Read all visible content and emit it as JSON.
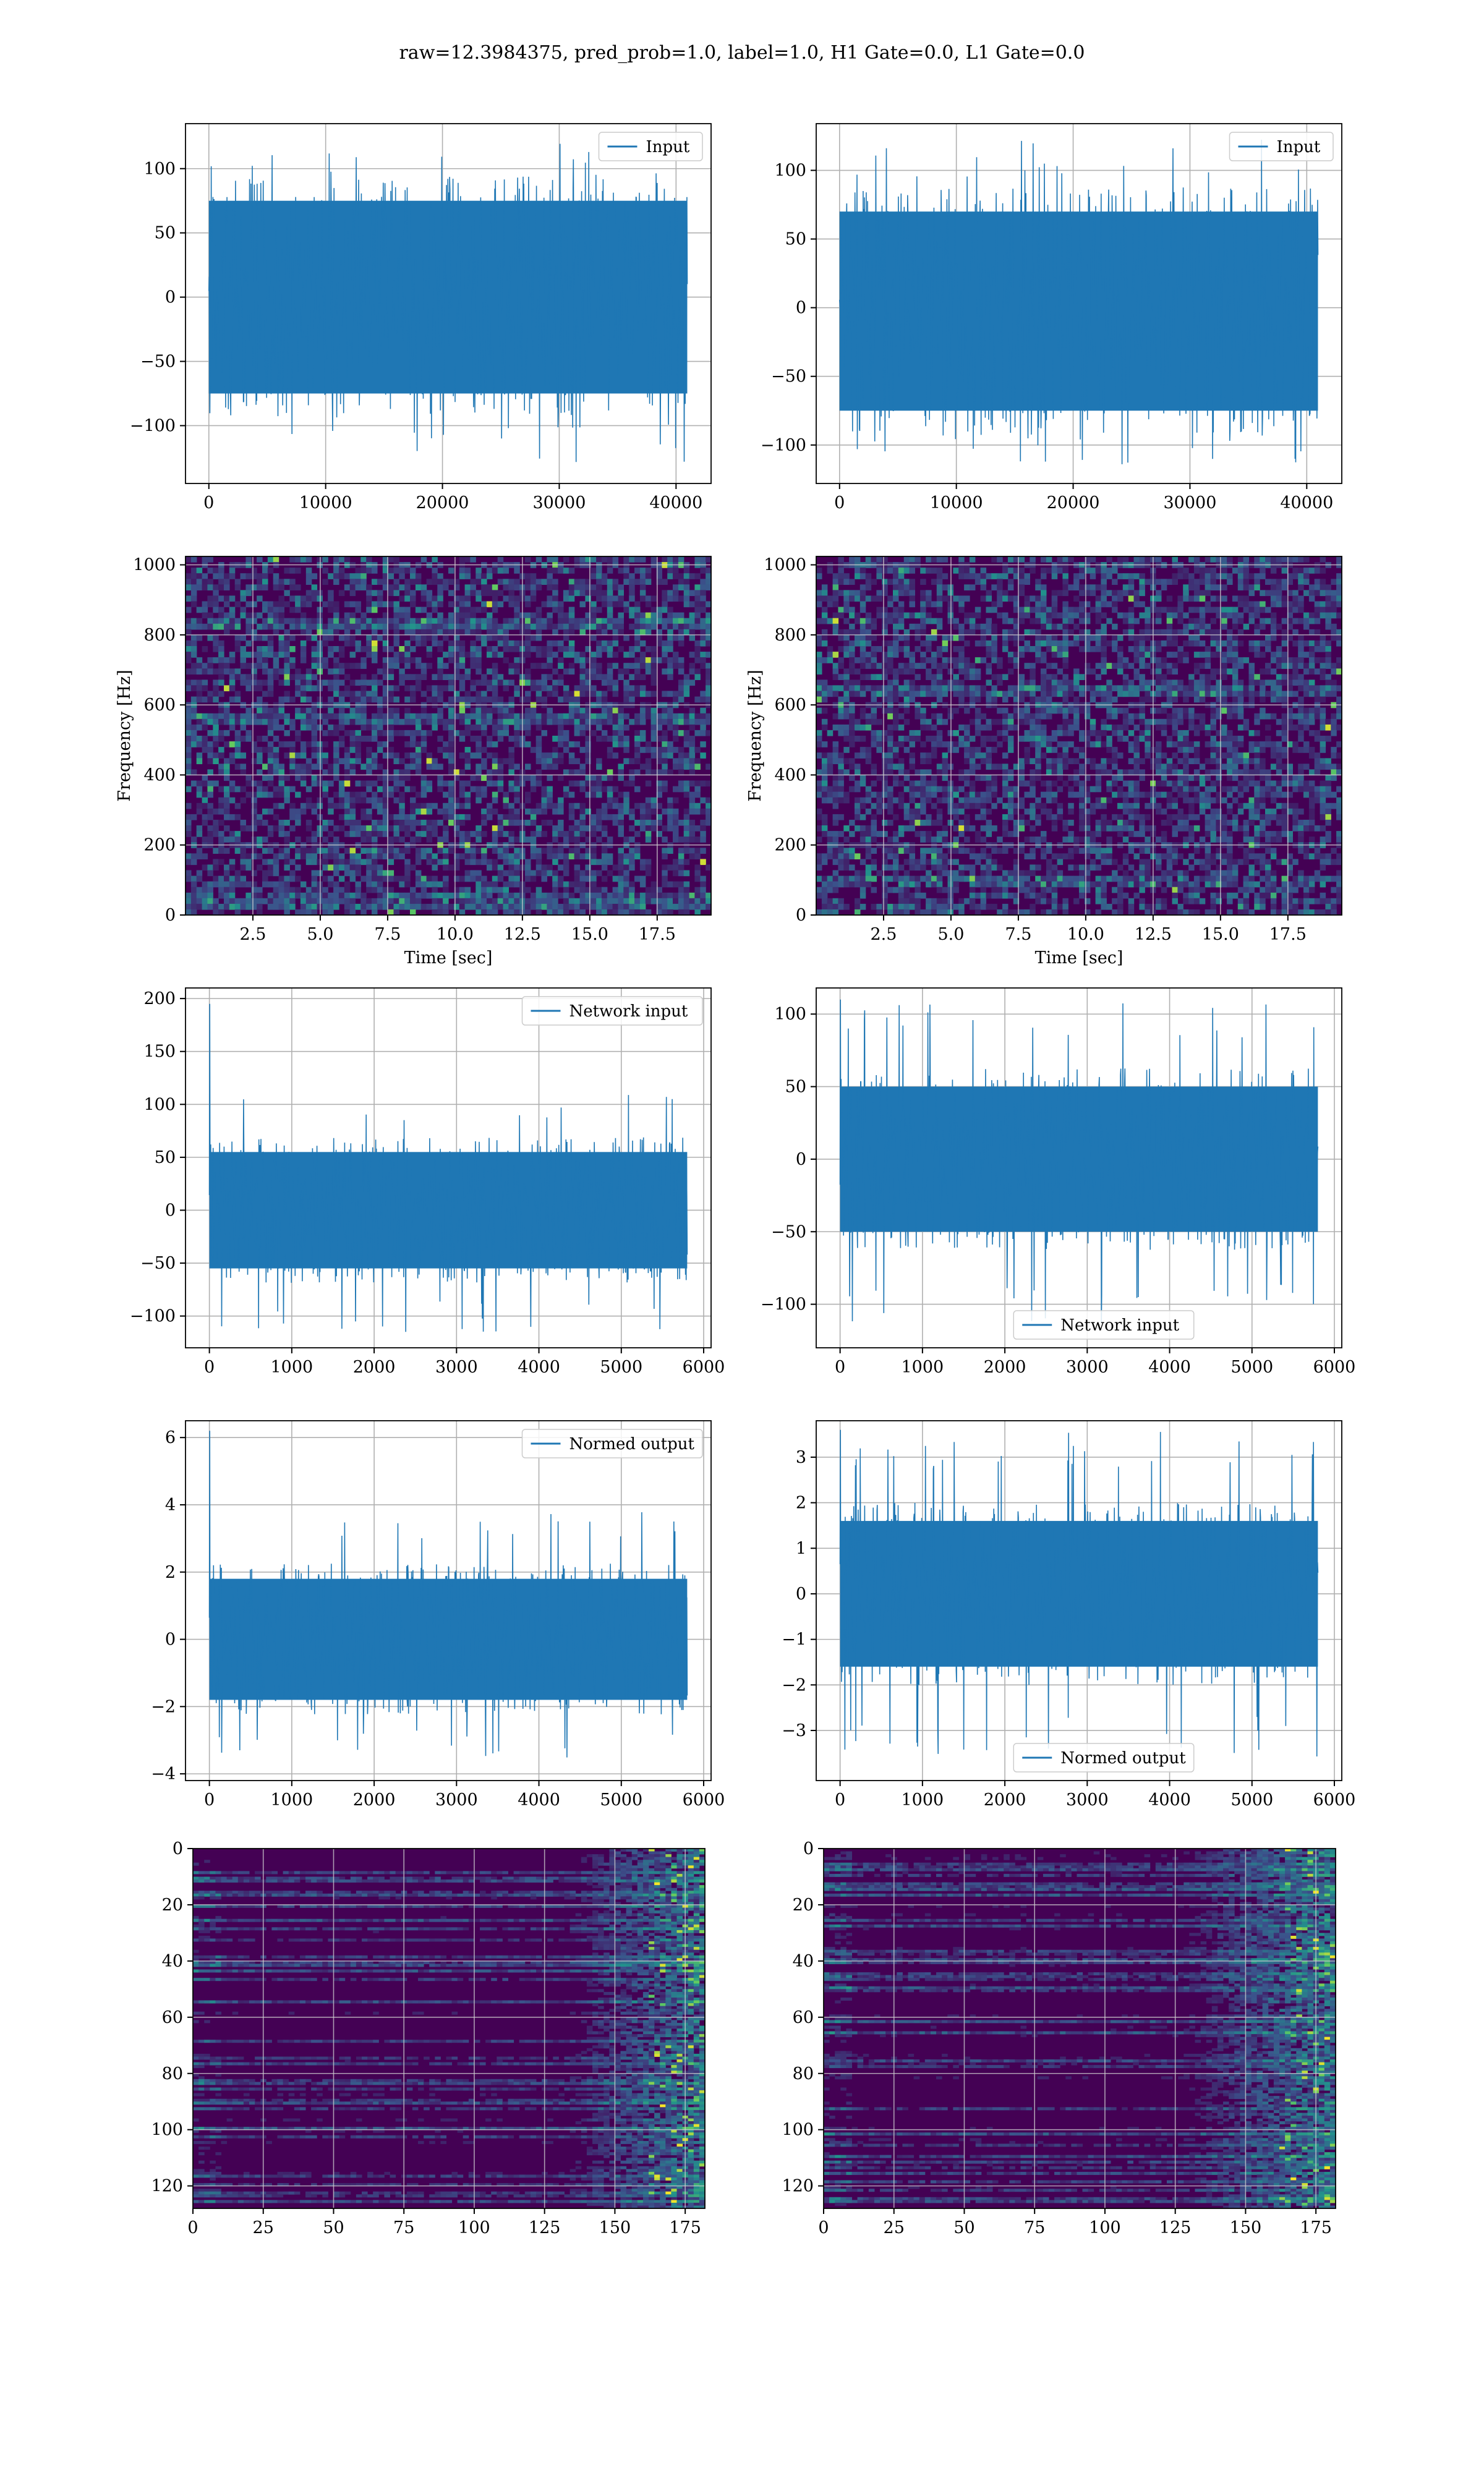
{
  "figure": {
    "suptitle": "raw=12.3984375, pred_prob=1.0, label=1.0, H1 Gate=0.0, L1 Gate=0.0"
  },
  "colors": {
    "line": "#1f77b4",
    "viridis_dark": "#440154",
    "viridis_blue": "#31688e",
    "viridis_teal": "#21918c",
    "viridis_green": "#35b779",
    "viridis_yellow": "#fde725",
    "grid": "#b0b0b0"
  },
  "chart_data": [
    {
      "id": "r0c0",
      "type": "line",
      "title": "",
      "xlabel": "",
      "ylabel": "",
      "xlim": [
        -2000,
        43000
      ],
      "ylim": [
        -145,
        135
      ],
      "xticks": [
        0,
        10000,
        20000,
        30000,
        40000
      ],
      "yticks": [
        -100,
        -50,
        0,
        50,
        100
      ],
      "legend": {
        "position": "upper-right",
        "entries": [
          "Input"
        ]
      },
      "grid": true,
      "series": [
        {
          "name": "Input",
          "x_range": [
            0,
            40960
          ],
          "n_samples": 40960,
          "body": [
            -75,
            75
          ],
          "extremes": [
            -130,
            120
          ]
        }
      ]
    },
    {
      "id": "r0c1",
      "type": "line",
      "title": "",
      "xlabel": "",
      "ylabel": "",
      "xlim": [
        -2000,
        43000
      ],
      "ylim": [
        -128,
        134
      ],
      "xticks": [
        0,
        10000,
        20000,
        30000,
        40000
      ],
      "yticks": [
        -100,
        -50,
        0,
        50,
        100
      ],
      "legend": {
        "position": "upper-right",
        "entries": [
          "Input"
        ]
      },
      "grid": true,
      "series": [
        {
          "name": "Input",
          "x_range": [
            0,
            40960
          ],
          "n_samples": 40960,
          "body": [
            -75,
            70
          ],
          "extremes": [
            -115,
            125
          ]
        }
      ]
    },
    {
      "id": "r1c0",
      "type": "heatmap",
      "title": "",
      "xlabel": "Time [sec]",
      "ylabel": "Frequency [Hz]",
      "xlim": [
        0,
        19.5
      ],
      "ylim": [
        0,
        1024
      ],
      "xticks": [
        2.5,
        5.0,
        7.5,
        10.0,
        12.5,
        15.0,
        17.5
      ],
      "yticks": [
        0,
        200,
        400,
        600,
        800,
        1000
      ],
      "grid": true,
      "colormap": "viridis",
      "bright_bands_hz": [
        830,
        560,
        40
      ]
    },
    {
      "id": "r1c1",
      "type": "heatmap",
      "title": "",
      "xlabel": "Time [sec]",
      "ylabel": "Frequency [Hz]",
      "xlim": [
        0,
        19.5
      ],
      "ylim": [
        0,
        1024
      ],
      "xticks": [
        2.5,
        5.0,
        7.5,
        10.0,
        12.5,
        15.0,
        17.5
      ],
      "yticks": [
        0,
        200,
        400,
        600,
        800,
        1000
      ],
      "grid": true,
      "colormap": "viridis",
      "bright_bands_hz": [
        100,
        640
      ]
    },
    {
      "id": "r2c0",
      "type": "line",
      "title": "",
      "xlabel": "",
      "ylabel": "",
      "xlim": [
        -290,
        6090
      ],
      "ylim": [
        -130,
        210
      ],
      "xticks": [
        0,
        1000,
        2000,
        3000,
        4000,
        5000,
        6000
      ],
      "yticks": [
        -100,
        -50,
        0,
        50,
        100,
        150,
        200
      ],
      "legend": {
        "position": "upper-right",
        "entries": [
          "Network input"
        ]
      },
      "grid": true,
      "series": [
        {
          "name": "Network input",
          "x_range": [
            0,
            5800
          ],
          "n_samples": 5800,
          "body": [
            -55,
            55
          ],
          "extremes": [
            -115,
            110
          ],
          "spike": {
            "x": 10,
            "y": 195
          }
        }
      ]
    },
    {
      "id": "r2c1",
      "type": "line",
      "title": "",
      "xlabel": "",
      "ylabel": "",
      "xlim": [
        -290,
        6090
      ],
      "ylim": [
        -130,
        118
      ],
      "xticks": [
        0,
        1000,
        2000,
        3000,
        4000,
        5000,
        6000
      ],
      "yticks": [
        -100,
        -50,
        0,
        50,
        100
      ],
      "legend": {
        "position": "lower-center",
        "entries": [
          "Network input"
        ]
      },
      "grid": true,
      "series": [
        {
          "name": "Network input",
          "x_range": [
            0,
            5800
          ],
          "n_samples": 5800,
          "body": [
            -50,
            50
          ],
          "extremes": [
            -115,
            110
          ],
          "spike": {
            "x": 10,
            "y": 110
          }
        }
      ]
    },
    {
      "id": "r3c0",
      "type": "line",
      "title": "",
      "xlabel": "",
      "ylabel": "",
      "xlim": [
        -290,
        6090
      ],
      "ylim": [
        -4.2,
        6.5
      ],
      "xticks": [
        0,
        1000,
        2000,
        3000,
        4000,
        5000,
        6000
      ],
      "yticks": [
        -4,
        -2,
        0,
        2,
        4,
        6
      ],
      "legend": {
        "position": "upper-right",
        "entries": [
          "Normed output"
        ]
      },
      "grid": true,
      "series": [
        {
          "name": "Normed output",
          "x_range": [
            0,
            5800
          ],
          "n_samples": 5800,
          "body": [
            -1.8,
            1.8
          ],
          "extremes": [
            -3.6,
            3.8
          ],
          "spike": {
            "x": 10,
            "y": 6.2
          }
        }
      ]
    },
    {
      "id": "r3c1",
      "type": "line",
      "title": "",
      "xlabel": "",
      "ylabel": "",
      "xlim": [
        -290,
        6090
      ],
      "ylim": [
        -4.1,
        3.8
      ],
      "xticks": [
        0,
        1000,
        2000,
        3000,
        4000,
        5000,
        6000
      ],
      "yticks": [
        -3,
        -2,
        -1,
        0,
        1,
        2,
        3
      ],
      "legend": {
        "position": "lower-center",
        "entries": [
          "Normed output"
        ]
      },
      "grid": true,
      "series": [
        {
          "name": "Normed output",
          "x_range": [
            0,
            5800
          ],
          "n_samples": 5800,
          "body": [
            -1.6,
            1.6
          ],
          "extremes": [
            -3.6,
            3.6
          ],
          "spike": {
            "x": 10,
            "y": 3.6
          }
        }
      ]
    },
    {
      "id": "r4c0",
      "type": "heatmap",
      "title": "",
      "xlabel": "",
      "ylabel": "",
      "xlim": [
        0,
        182
      ],
      "ylim": [
        128,
        0
      ],
      "xticks": [
        0,
        25,
        50,
        75,
        100,
        125,
        150,
        175
      ],
      "yticks": [
        0,
        20,
        40,
        60,
        80,
        100,
        120
      ],
      "grid": true,
      "colormap": "viridis",
      "n_rows": 128,
      "n_cols": 182,
      "activity_onset_col": 130
    },
    {
      "id": "r4c1",
      "type": "heatmap",
      "title": "",
      "xlabel": "",
      "ylabel": "",
      "xlim": [
        0,
        182
      ],
      "ylim": [
        128,
        0
      ],
      "xticks": [
        0,
        25,
        50,
        75,
        100,
        125,
        150,
        175
      ],
      "yticks": [
        0,
        20,
        40,
        60,
        80,
        100,
        120
      ],
      "grid": true,
      "colormap": "viridis",
      "n_rows": 128,
      "n_cols": 182,
      "activity_onset_col": 125
    }
  ]
}
